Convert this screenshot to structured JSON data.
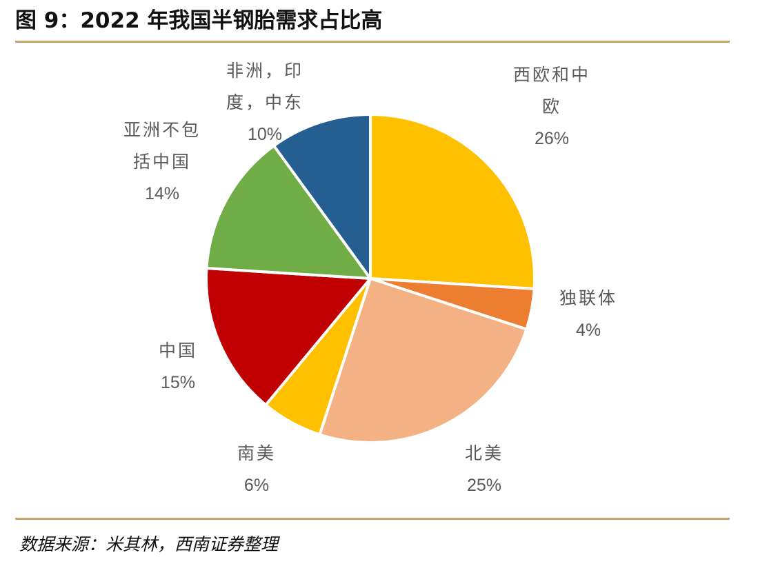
{
  "title": "图 9：2022 年我国半钢胎需求占比高",
  "source": "数据来源：米其林，西南证券整理",
  "chart_data": {
    "type": "pie",
    "title": "",
    "slices": [
      {
        "label": "西欧和中\n欧",
        "value": 26,
        "display": "26%",
        "color": "#FFC000"
      },
      {
        "label": "独联体",
        "value": 4,
        "display": "4%",
        "color": "#ED7D31"
      },
      {
        "label": "北美",
        "value": 25,
        "display": "25%",
        "color": "#F4B183"
      },
      {
        "label": "南美",
        "value": 6,
        "display": "6%",
        "color": "#FFC000"
      },
      {
        "label": "中国",
        "value": 15,
        "display": "15%",
        "color": "#C00000"
      },
      {
        "label": "亚洲不包\n括中国",
        "value": 14,
        "display": "14%",
        "color": "#70AD47"
      },
      {
        "label": "非洲，印\n度，中东",
        "value": 10,
        "display": "10%",
        "color": "#255E91"
      }
    ]
  }
}
